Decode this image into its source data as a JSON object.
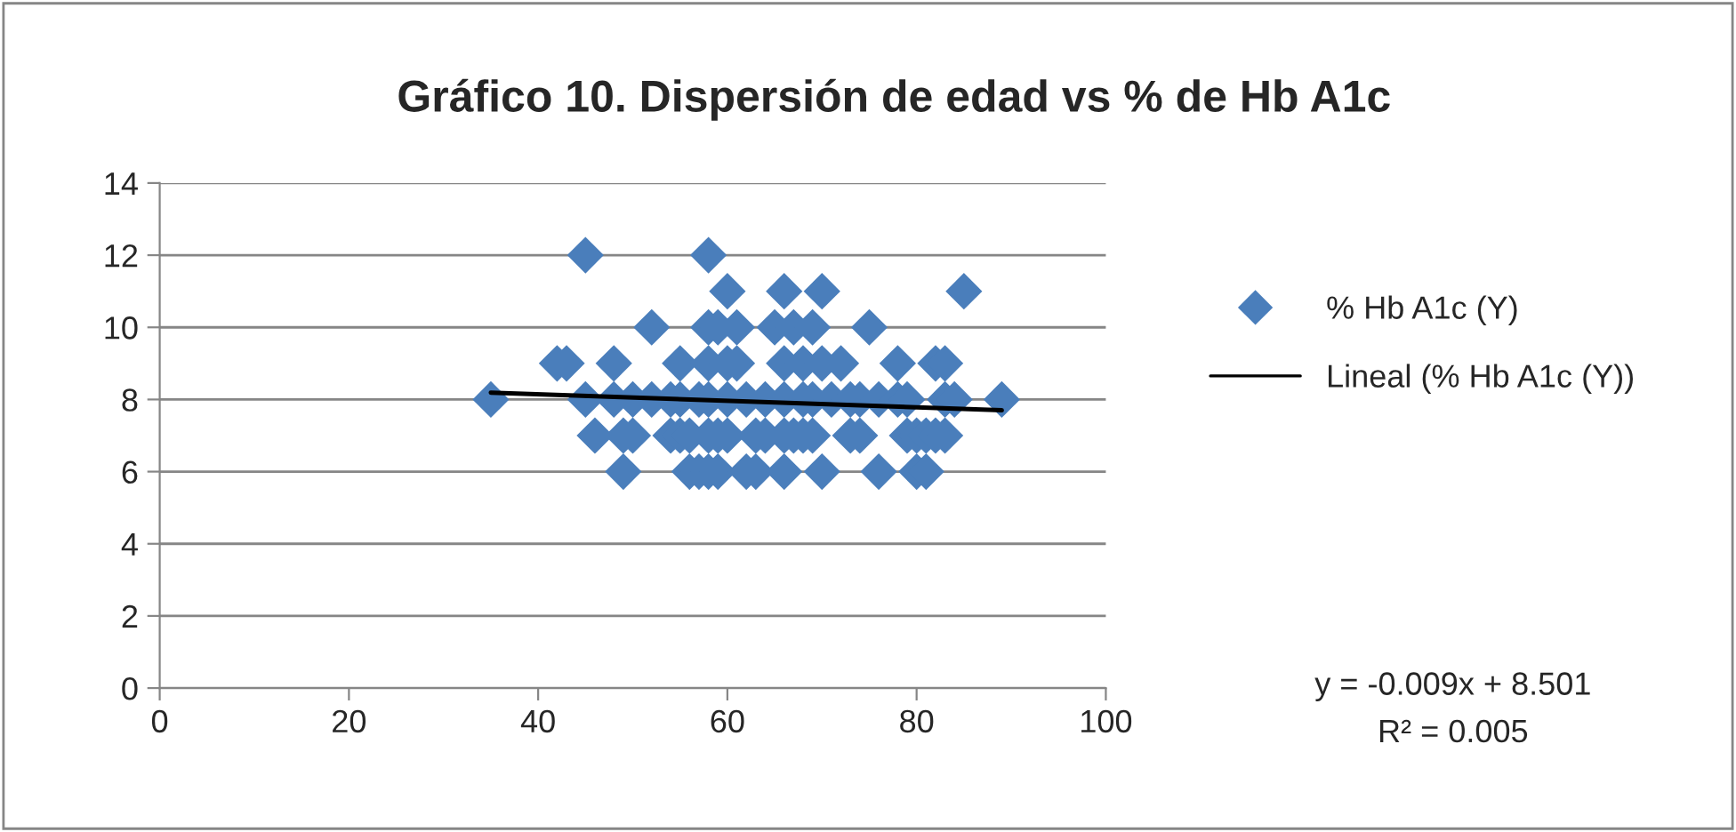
{
  "chart_data": {
    "type": "scatter",
    "title": "Gráfico 10. Dispersión de edad vs % de Hb A1c",
    "xlim": [
      0,
      100
    ],
    "xticks": [
      0,
      20,
      40,
      60,
      80,
      100
    ],
    "ylim": [
      0,
      14
    ],
    "yticks": [
      0,
      2,
      4,
      6,
      8,
      10,
      12,
      14
    ],
    "grid": "y",
    "legend": "right",
    "series": [
      {
        "name": "% Hb A1c (Y)",
        "color": "#4a7ebb",
        "marker": "diamond",
        "x": [
          45,
          58,
          60,
          66,
          70,
          85,
          52,
          58,
          59,
          61,
          65,
          67,
          69,
          75,
          42,
          43,
          48,
          55,
          58,
          60,
          61,
          66,
          68,
          70,
          72,
          78,
          82,
          83,
          35,
          45,
          48,
          50,
          52,
          54,
          55,
          57,
          58,
          60,
          62,
          64,
          66,
          68,
          69,
          71,
          73,
          74,
          76,
          78,
          79,
          83,
          84,
          89,
          46,
          49,
          50,
          54,
          55,
          56,
          58,
          59,
          60,
          63,
          64,
          66,
          67,
          68,
          69,
          73,
          74,
          79,
          80,
          81,
          82,
          83,
          49,
          56,
          57,
          58,
          59,
          62,
          63,
          66,
          70,
          76,
          80,
          81
        ],
        "values": [
          12,
          12,
          11,
          11,
          11,
          11,
          10,
          10,
          10,
          10,
          10,
          10,
          10,
          10,
          9,
          9,
          9,
          9,
          9,
          9,
          9,
          9,
          9,
          9,
          9,
          9,
          9,
          9,
          8,
          8,
          8,
          8,
          8,
          8,
          8,
          8,
          8,
          8,
          8,
          8,
          8,
          8,
          8,
          8,
          8,
          8,
          8,
          8,
          8,
          8,
          8,
          8,
          7,
          7,
          7,
          7,
          7,
          7,
          7,
          7,
          7,
          7,
          7,
          7,
          7,
          7,
          7,
          7,
          7,
          7,
          7,
          7,
          7,
          7,
          6,
          6,
          6,
          6,
          6,
          6,
          6,
          6,
          6,
          6,
          6,
          6
        ]
      },
      {
        "name": "Lineal (% Hb A1c (Y))",
        "color": "#000000",
        "type": "line",
        "x": [
          35,
          89
        ],
        "values": [
          8.19,
          7.7
        ]
      }
    ],
    "annotations": [
      "y = -0.009x + 8.501",
      "R² = 0.005"
    ]
  }
}
